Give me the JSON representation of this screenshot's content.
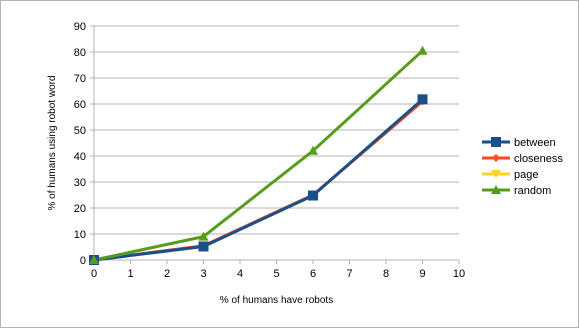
{
  "chart_data": {
    "type": "line",
    "xlabel": "% of humans have robots",
    "ylabel": "% of humans using robot word",
    "xlim": [
      0,
      10
    ],
    "ylim": [
      0,
      90
    ],
    "x_ticks": [
      0,
      1,
      2,
      3,
      4,
      5,
      6,
      7,
      8,
      9,
      10
    ],
    "y_ticks": [
      0,
      10,
      20,
      30,
      40,
      50,
      60,
      70,
      80,
      90
    ],
    "grid": "horizontal",
    "legend_position": "right",
    "series": [
      {
        "name": "between",
        "color": "#1a4f8a",
        "marker": "square",
        "x": [
          0,
          3,
          6,
          9
        ],
        "y": [
          0,
          5.2,
          24.8,
          61.8
        ]
      },
      {
        "name": "closeness",
        "color": "#ff4b1f",
        "marker": "diamond",
        "x": [
          0,
          3,
          6,
          9
        ],
        "y": [
          0,
          5.5,
          25.0,
          61.0
        ]
      },
      {
        "name": "page",
        "color": "#ffd320",
        "marker": "triangle-down",
        "x": [
          0,
          3,
          6,
          9
        ],
        "y": [
          0,
          5.4,
          24.9,
          61.4
        ]
      },
      {
        "name": "random",
        "color": "#579d1c",
        "marker": "triangle",
        "x": [
          0,
          3,
          6,
          9
        ],
        "y": [
          0,
          9.0,
          42.0,
          80.5
        ]
      }
    ]
  }
}
